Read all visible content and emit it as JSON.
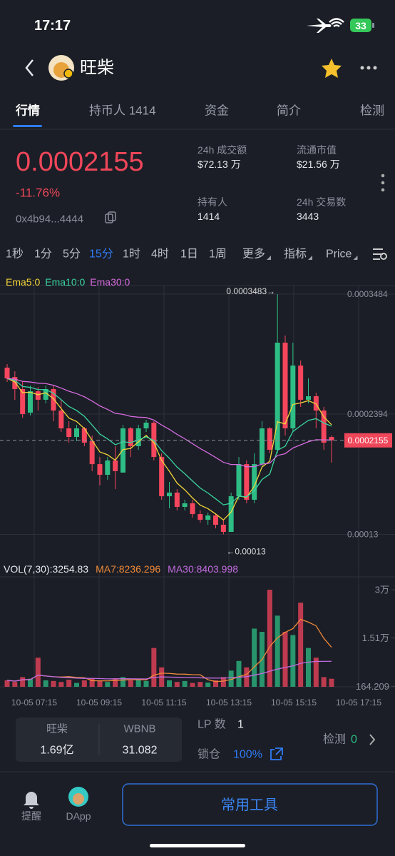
{
  "status_bar": {
    "time": "17:17",
    "battery": "33"
  },
  "header": {
    "title": "旺柴"
  },
  "tabs": [
    "行情",
    "持币人 1414",
    "资金",
    "简介",
    "检测"
  ],
  "price": {
    "value": 0.0002155,
    "change": "-11.76%",
    "address": "0x4b94...4444"
  },
  "stats": [
    {
      "label": "24h 成交额",
      "value": "$72.13 万"
    },
    {
      "label": "流通市值",
      "value": "$21.56 万"
    },
    {
      "label": "持有人",
      "value": "1414"
    },
    {
      "label": "24h 交易数",
      "value": "3443"
    }
  ],
  "intervals": [
    "1秒",
    "1分",
    "5分",
    "15分",
    "1时",
    "4时",
    "1日",
    "1周",
    "更多",
    "指标",
    "Price"
  ],
  "chart_data": {
    "type": "candlestick",
    "legend": [
      {
        "name": "Ema5:0",
        "color": "#f2d43a"
      },
      {
        "name": "Ema10:0",
        "color": "#3ad3a0"
      },
      {
        "name": "Ema30:0",
        "color": "#d66be0"
      }
    ],
    "xticks": [
      "10-05 07:15",
      "10-05 09:15",
      "10-05 11:15",
      "10-05 13:15",
      "10-05 15:15",
      "10-05 17:15"
    ],
    "open": [
      0.0002816,
      0.0002731,
      0.0002621,
      0.0002407,
      0.0002601,
      0.0002524,
      0.0002621,
      0.0002426,
      0.0002264,
      0.0002186,
      0.0002264,
      0.0002147,
      0.0001939,
      0.0001842,
      0.0001972,
      0.0001862,
      0.0002264,
      0.0002102,
      0.0002264,
      0.0002316,
      0.0002004,
      0.0001647,
      0.000168,
      0.000155,
      0.0001583,
      0.0001485,
      0.0001433,
      0.0001472,
      0.0001388,
      0.0001323,
      0.0001647,
      0.0001939,
      0.0001615,
      0.0001939,
      0.0002264,
      0.0002069,
      0.0003043,
      0.0002264,
      0.0002835,
      0.0002524,
      0.0002556,
      0.0002426,
      0.0002186
    ],
    "high": [
      0.0002848,
      0.0002783,
      0.0002686,
      0.0002653,
      0.000264,
      0.0002653,
      0.0002653,
      0.0002524,
      0.0002329,
      0.0002296,
      0.0002277,
      0.0002199,
      0.0002004,
      0.0002004,
      0.0002102,
      0.0002296,
      0.0002277,
      0.0002296,
      0.0002342,
      0.0002329,
      0.0002037,
      0.0001777,
      0.0001712,
      0.0001615,
      0.0001615,
      0.0001518,
      0.0001498,
      0.0001485,
      0.0001433,
      0.000168,
      0.0002004,
      0.0001972,
      0.0002037,
      0.0002329,
      0.0002277,
      0.0003483,
      0.0003108,
      0.0003043,
      0.0002881,
      0.0002718,
      0.0002588,
      0.0002459,
      0.0002199
    ],
    "low": [
      0.0002686,
      0.0002524,
      0.0002361,
      0.0002381,
      0.0002426,
      0.0002491,
      0.0002329,
      0.0002232,
      0.0002134,
      0.0002147,
      0.0002102,
      0.0001875,
      0.0001745,
      0.0001797,
      0.0001712,
      0.0001862,
      0.0002004,
      0.0002069,
      0.0002232,
      0.0001972,
      0.0001615,
      0.0001537,
      0.0001518,
      0.0001518,
      0.0001453,
      0.0001407,
      0.0001388,
      0.0001355,
      0.00013,
      0.0001323,
      0.0001615,
      0.0001583,
      0.0001583,
      0.0001907,
      0.0002037,
      0.0002037,
      0.0002199,
      0.0002232,
      0.0002459,
      0.0002491,
      0.0002264,
      0.0002069,
      0.0001952
    ],
    "close": [
      0.0002718,
      0.0002621,
      0.0002394,
      0.0002601,
      0.0002524,
      0.0002621,
      0.0002426,
      0.0002264,
      0.0002186,
      0.0002264,
      0.0002134,
      0.0001939,
      0.0001842,
      0.0001972,
      0.0001875,
      0.0002264,
      0.0002102,
      0.0002264,
      0.0002316,
      0.0002004,
      0.0001647,
      0.000168,
      0.000155,
      0.0001583,
      0.0001485,
      0.0001433,
      0.0001472,
      0.0001388,
      0.0001323,
      0.0001647,
      0.0001939,
      0.0001615,
      0.0001939,
      0.0002264,
      0.0002069,
      0.0003043,
      0.0002264,
      0.0002835,
      0.0002524,
      0.0002556,
      0.0002426,
      0.0002134,
      0.0002155
    ],
    "up_color": "#2ebd85",
    "down_color": "#f6465d",
    "ylim": [
      0.0001031,
      0.0003562
    ],
    "yticks": [
      0.0003484,
      0.0002394,
      0.00013
    ],
    "max_label": "0.0003483→",
    "min_label": "←0.00013",
    "volume": {
      "legend": [
        {
          "name": "VOL(7,30):3254.83",
          "color": "#e6e8ee"
        },
        {
          "name": "MA7:8236.296",
          "color": "#f08a3a"
        },
        {
          "name": "MA30:8403.998",
          "color": "#c26be0"
        }
      ],
      "values": [
        2000,
        1500,
        3000,
        2500,
        9000,
        2000,
        1800,
        1500,
        2200,
        1200,
        2000,
        2500,
        1800,
        1500,
        2600,
        3000,
        2000,
        2200,
        1800,
        12000,
        6000,
        2000,
        1500,
        1800,
        1200,
        1500,
        1300,
        2000,
        3000,
        5000,
        8000,
        6000,
        18000,
        17000,
        30000,
        22000,
        17000,
        16000,
        26000,
        12000,
        9000,
        3000,
        2500
      ],
      "ylim": [
        0,
        34000
      ],
      "yticks": [
        {
          "value": 30000,
          "label": "3万"
        },
        {
          "value": 15100,
          "label": "1.51万"
        },
        164.209
      ]
    }
  },
  "footer": {
    "pair": [
      {
        "name": "旺柴",
        "amount": "1.69亿"
      },
      {
        "name": "WBNB",
        "amount": "31.082"
      }
    ],
    "lp_label": "LP 数",
    "lp_value": "1",
    "lock_label": "锁仓",
    "lock_value": "100%",
    "check_label": "检测",
    "check_value": "0",
    "nav": [
      "提醒",
      "DApp"
    ],
    "button": "常用工具"
  }
}
